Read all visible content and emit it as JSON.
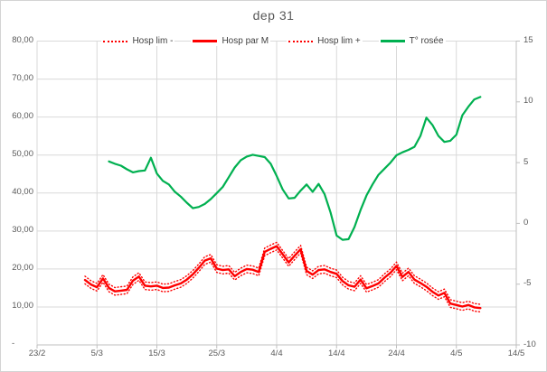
{
  "title": "dep 31",
  "colors": {
    "red": "#fe0000",
    "green": "#00b050",
    "grid": "#d9d9d9",
    "axis": "#bfbfbf",
    "text": "#595959",
    "legend_text": "#404040"
  },
  "legend": {
    "items": [
      {
        "label": "Hosp lim -",
        "swatch": "dotted-red"
      },
      {
        "label": "Hosp par M",
        "swatch": "solid-red"
      },
      {
        "label": "Hosp lim +",
        "swatch": "dotted-red"
      },
      {
        "label": "T° rosée",
        "swatch": "solid-green"
      }
    ]
  },
  "chart_data": {
    "type": "line",
    "title": "dep 31",
    "grid": "horizontal+vertical",
    "legend_position": "top",
    "x_axis": {
      "unit": "date (daily points), day index counted from 23/2",
      "tick_labels": [
        "23/2",
        "5/3",
        "15/3",
        "25/3",
        "4/4",
        "14/4",
        "24/4",
        "4/5",
        "14/5"
      ],
      "tick_days": [
        0,
        10,
        20,
        30,
        40,
        50,
        60,
        70,
        80
      ],
      "range_days": [
        0,
        80
      ]
    },
    "y_axis_left": {
      "title": "",
      "min": 0,
      "max": 80,
      "step": 10,
      "tick_labels_top_down": [
        "80,00",
        "70,00",
        "60,00",
        "50,00",
        "40,00",
        "30,00",
        "20,00",
        "10,00",
        "-"
      ]
    },
    "y_axis_right": {
      "title": "",
      "min": -10,
      "max": 15,
      "step": 5,
      "tick_labels_top_down": [
        "15",
        "10",
        "5",
        "0",
        "-5",
        "-10"
      ]
    },
    "series": [
      {
        "name": "Hosp lim -",
        "axis": "left",
        "style": "dotted",
        "color": "#fe0000",
        "start_day": 8,
        "values": [
          16.1,
          14.9,
          14.2,
          16.5,
          14.0,
          13.1,
          13.3,
          13.5,
          15.9,
          17.0,
          14.6,
          14.4,
          14.6,
          14.0,
          14.1,
          14.7,
          15.2,
          16.2,
          17.6,
          19.3,
          21.2,
          21.8,
          19.1,
          18.7,
          18.9,
          17.1,
          18.2,
          19.0,
          18.8,
          18.2,
          23.5,
          24.3,
          25.0,
          22.9,
          20.7,
          22.5,
          24.2,
          18.5,
          17.5,
          18.7,
          18.9,
          18.2,
          17.7,
          15.8,
          14.7,
          14.3,
          16.2,
          13.9,
          14.5,
          15.2,
          16.7,
          18.0,
          19.8,
          16.9,
          18.2,
          16.2,
          15.3,
          14.3,
          13.0,
          12.0,
          12.7,
          9.9,
          9.5,
          9.1,
          9.5,
          8.9,
          8.7
        ]
      },
      {
        "name": "Hosp par M",
        "axis": "left",
        "style": "solid",
        "color": "#fe0000",
        "start_day": 8,
        "values": [
          17.1,
          15.9,
          15.2,
          17.5,
          15.0,
          14.1,
          14.3,
          14.5,
          16.9,
          18.0,
          15.6,
          15.4,
          15.6,
          15.0,
          15.1,
          15.7,
          16.2,
          17.2,
          18.6,
          20.3,
          22.2,
          22.8,
          20.1,
          19.7,
          19.9,
          18.1,
          19.2,
          20.0,
          19.8,
          19.2,
          24.5,
          25.3,
          26.0,
          23.9,
          21.7,
          23.5,
          25.2,
          19.5,
          18.5,
          19.7,
          19.9,
          19.2,
          18.7,
          16.8,
          15.7,
          15.3,
          17.2,
          14.9,
          15.5,
          16.2,
          17.7,
          19.0,
          20.8,
          17.9,
          19.2,
          17.2,
          16.3,
          15.3,
          14.0,
          13.0,
          13.7,
          10.9,
          10.5,
          10.1,
          10.5,
          9.9,
          9.7
        ]
      },
      {
        "name": "Hosp lim +",
        "axis": "left",
        "style": "dotted",
        "color": "#fe0000",
        "start_day": 8,
        "values": [
          18.1,
          16.9,
          16.2,
          18.5,
          16.0,
          15.1,
          15.3,
          15.5,
          17.9,
          19.0,
          16.6,
          16.4,
          16.6,
          16.0,
          16.1,
          16.7,
          17.2,
          18.2,
          19.6,
          21.3,
          23.2,
          23.8,
          21.1,
          20.7,
          20.9,
          19.1,
          20.2,
          21.0,
          20.8,
          20.2,
          25.5,
          26.3,
          27.0,
          24.9,
          22.7,
          24.5,
          26.2,
          20.5,
          19.5,
          20.7,
          20.9,
          20.2,
          19.7,
          17.8,
          16.7,
          16.3,
          18.2,
          15.9,
          16.5,
          17.2,
          18.7,
          20.0,
          21.8,
          18.9,
          20.2,
          18.2,
          17.3,
          16.3,
          15.0,
          14.0,
          14.7,
          11.9,
          11.5,
          11.1,
          11.5,
          10.9,
          10.7
        ]
      },
      {
        "name": "T° rosée",
        "axis": "right",
        "style": "solid",
        "color": "#00b050",
        "start_day": 12,
        "values": [
          5.1,
          4.9,
          4.75,
          4.45,
          4.2,
          4.3,
          4.35,
          5.4,
          4.1,
          3.5,
          3.2,
          2.6,
          2.2,
          1.7,
          1.25,
          1.35,
          1.6,
          2.0,
          2.5,
          3.0,
          3.8,
          4.6,
          5.2,
          5.5,
          5.65,
          5.55,
          5.45,
          4.9,
          3.9,
          2.8,
          2.05,
          2.1,
          2.7,
          3.2,
          2.6,
          3.25,
          2.4,
          0.9,
          -1.0,
          -1.35,
          -1.3,
          -0.3,
          1.1,
          2.3,
          3.2,
          4.0,
          4.5,
          5.0,
          5.6,
          5.85,
          6.05,
          6.3,
          7.2,
          8.7,
          8.1,
          7.2,
          6.7,
          6.8,
          7.3,
          8.9,
          9.6,
          10.2,
          10.4
        ]
      }
    ]
  }
}
